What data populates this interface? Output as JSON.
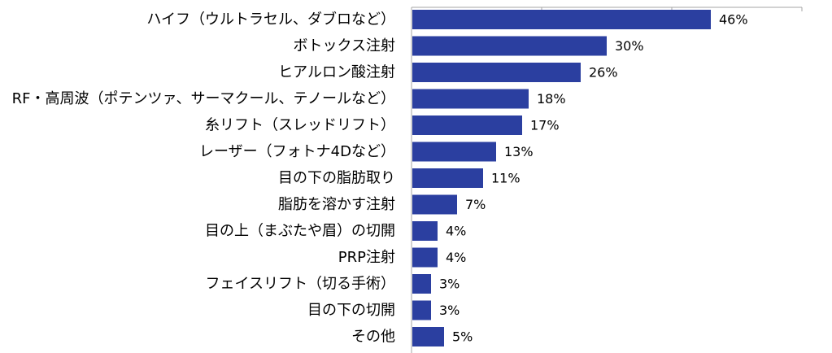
{
  "chart_data": {
    "type": "bar",
    "orientation": "horizontal",
    "categories": [
      "ハイフ（ウルトラセル、ダブロなど）",
      "ボトックス注射",
      "ヒアルロン酸注射",
      "RF・高周波（ポテンツァ、サーマクール、テノールなど）",
      "糸リフト（スレッドリフト）",
      "レーザー（フォトナ4Dなど）",
      "目の下の脂肪取り",
      "脂肪を溶かす注射",
      "目の上（まぶたや眉）の切開",
      "PRP注射",
      "フェイスリフト（切る手術）",
      "目の下の切開",
      "その他"
    ],
    "values": [
      46,
      30,
      26,
      18,
      17,
      13,
      11,
      7,
      4,
      4,
      3,
      3,
      5
    ],
    "value_labels": [
      "46%",
      "30%",
      "26%",
      "18%",
      "17%",
      "13%",
      "11%",
      "7%",
      "4%",
      "4%",
      "3%",
      "3%",
      "5%"
    ],
    "unit": "%",
    "xlim": [
      0,
      60
    ],
    "grid": false,
    "legend": "none",
    "colors": {
      "bar": "#2B3FA0",
      "axis": "#A6A6A6",
      "text": "#000000"
    }
  }
}
